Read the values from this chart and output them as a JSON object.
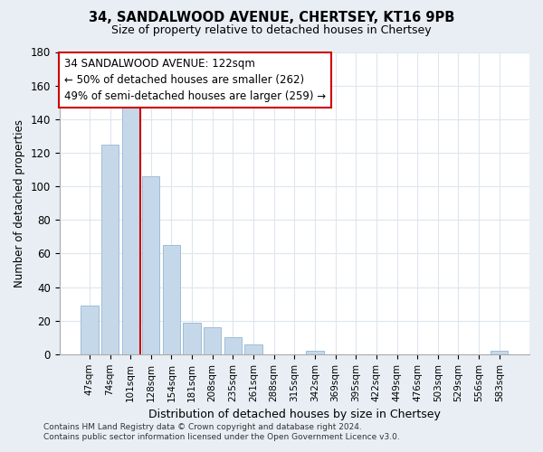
{
  "title1": "34, SANDALWOOD AVENUE, CHERTSEY, KT16 9PB",
  "title2": "Size of property relative to detached houses in Chertsey",
  "xlabel": "Distribution of detached houses by size in Chertsey",
  "ylabel": "Number of detached properties",
  "bar_labels": [
    "47sqm",
    "74sqm",
    "101sqm",
    "128sqm",
    "154sqm",
    "181sqm",
    "208sqm",
    "235sqm",
    "261sqm",
    "288sqm",
    "315sqm",
    "342sqm",
    "369sqm",
    "395sqm",
    "422sqm",
    "449sqm",
    "476sqm",
    "503sqm",
    "529sqm",
    "556sqm",
    "583sqm"
  ],
  "bar_values": [
    29,
    125,
    150,
    106,
    65,
    19,
    16,
    10,
    6,
    0,
    0,
    2,
    0,
    0,
    0,
    0,
    0,
    0,
    0,
    0,
    2
  ],
  "bar_color": "#c5d8ea",
  "bar_edge_color": "#9dbdd8",
  "marker_line_color": "#cc0000",
  "ylim": [
    0,
    180
  ],
  "yticks": [
    0,
    20,
    40,
    60,
    80,
    100,
    120,
    140,
    160,
    180
  ],
  "annotation_text": "34 SANDALWOOD AVENUE: 122sqm\n← 50% of detached houses are smaller (262)\n49% of semi-detached houses are larger (259) →",
  "annotation_box_color": "#ffffff",
  "annotation_box_edge": "#cc0000",
  "footer1": "Contains HM Land Registry data © Crown copyright and database right 2024.",
  "footer2": "Contains public sector information licensed under the Open Government Licence v3.0.",
  "figure_bg": "#e8eef4",
  "plot_bg": "#ffffff",
  "grid_color": "#dde6ee"
}
